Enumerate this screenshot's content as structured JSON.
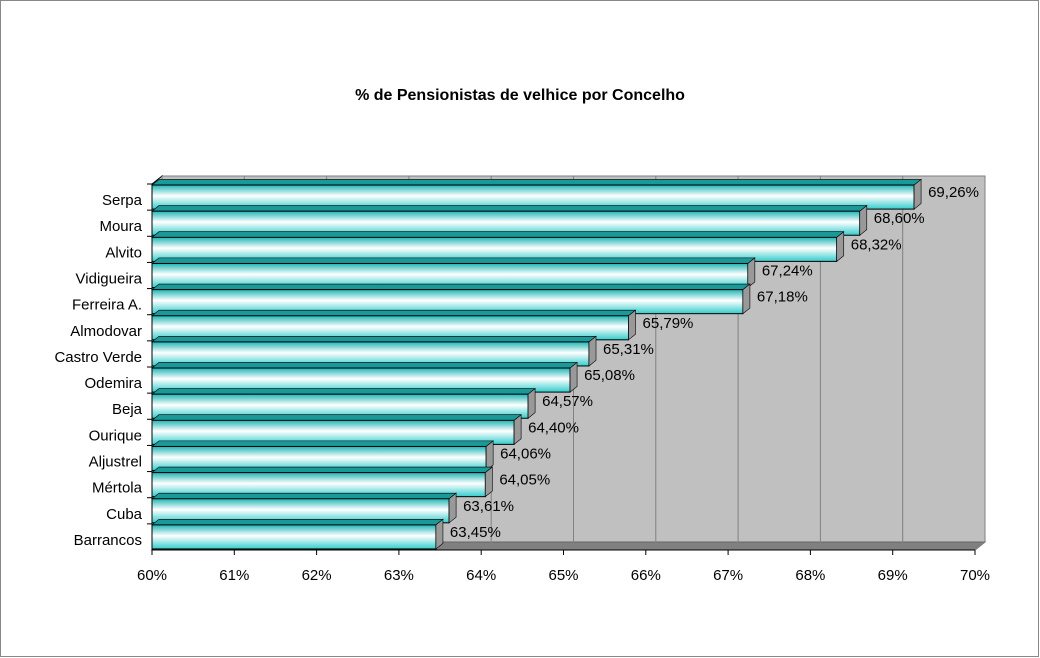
{
  "chart_data": {
    "type": "bar",
    "orientation": "horizontal",
    "title": "% de Pensionistas de velhice por Concelho",
    "categories": [
      "Serpa",
      "Moura",
      "Alvito",
      "Vidigueira",
      "Ferreira A.",
      "Almodovar",
      "Castro Verde",
      "Odemira",
      "Beja",
      "Ourique",
      "Aljustrel",
      "Mértola",
      "Cuba",
      "Barrancos"
    ],
    "values": [
      69.26,
      68.6,
      68.32,
      67.24,
      67.18,
      65.79,
      65.31,
      65.08,
      64.57,
      64.4,
      64.06,
      64.05,
      63.61,
      63.45
    ],
    "value_labels": [
      "69,26%",
      "68,60%",
      "68,32%",
      "67,24%",
      "67,18%",
      "65,79%",
      "65,31%",
      "65,08%",
      "64,57%",
      "64,40%",
      "64,06%",
      "64,05%",
      "63,61%",
      "63,45%"
    ],
    "color": "#33cccc",
    "xlim": [
      60,
      70
    ],
    "xticks": [
      {
        "value": 60,
        "label": "60%"
      },
      {
        "value": 61,
        "label": "61%"
      },
      {
        "value": 62,
        "label": "62%"
      },
      {
        "value": 63,
        "label": "63%"
      },
      {
        "value": 64,
        "label": "64%"
      },
      {
        "value": 65,
        "label": "65%"
      },
      {
        "value": 66,
        "label": "66%"
      },
      {
        "value": 67,
        "label": "67%"
      },
      {
        "value": 68,
        "label": "68%"
      },
      {
        "value": 69,
        "label": "69%"
      },
      {
        "value": 70,
        "label": "70%"
      }
    ],
    "grid": true
  }
}
